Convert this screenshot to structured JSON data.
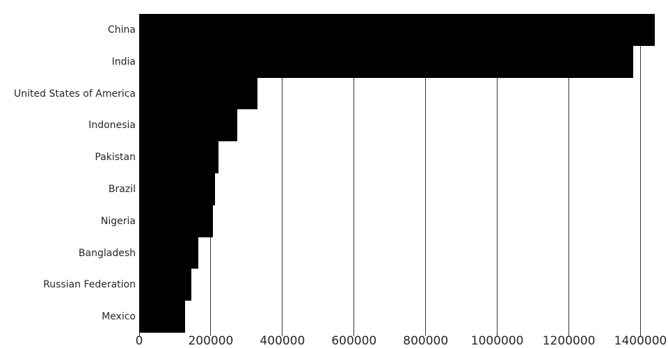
{
  "chart_data": {
    "type": "bar",
    "orientation": "horizontal",
    "title": "",
    "xlabel": "",
    "ylabel": "",
    "categories": [
      "China",
      "India",
      "United States of America",
      "Indonesia",
      "Pakistan",
      "Brazil",
      "Nigeria",
      "Bangladesh",
      "Russian Federation",
      "Mexico"
    ],
    "values": [
      1439324,
      1380004,
      331003,
      273524,
      220892,
      212559,
      206140,
      164689,
      145934,
      128933
    ],
    "xticks": [
      0,
      200000,
      400000,
      600000,
      800000,
      1000000,
      1200000,
      1400000
    ],
    "xtick_labels": [
      "0",
      "200000",
      "400000",
      "600000",
      "800000",
      "1000000",
      "1200000",
      "1400000"
    ],
    "xlim": [
      0,
      1476000
    ],
    "grid": true,
    "legend_position": "none",
    "bar_color": "#000000",
    "grid_color": "#333333",
    "text_color": "#262626",
    "background_color": "#ffffff"
  }
}
